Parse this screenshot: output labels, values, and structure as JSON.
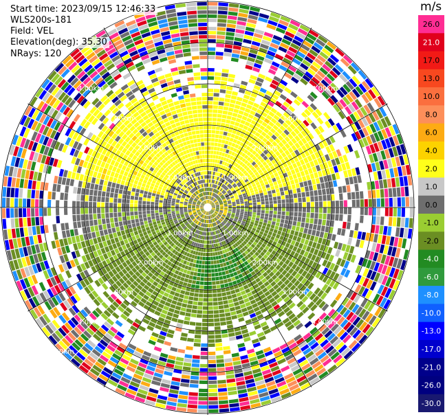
{
  "header": {
    "start_time": "Start time: 2023/09/15 12:46:33",
    "instrument": "WLS200s-181",
    "field": "Field: VEL",
    "elevation": "Elevation(deg): 35.30",
    "nrays": "NRays: 120"
  },
  "colorbar": {
    "unit": "m/s",
    "levels": [
      {
        "label": "26.0",
        "color": "#ff2d93"
      },
      {
        "label": "21.0",
        "color": "#e0001c"
      },
      {
        "label": "17.0",
        "color": "#f21a16"
      },
      {
        "label": "13.0",
        "color": "#f8481f"
      },
      {
        "label": "10.0",
        "color": "#fb6f3e"
      },
      {
        "label": "8.0",
        "color": "#fd8f5a"
      },
      {
        "label": "6.0",
        "color": "#fdab13"
      },
      {
        "label": "4.0",
        "color": "#fdd200"
      },
      {
        "label": "2.0",
        "color": "#ffff1a"
      },
      {
        "label": "1.0",
        "color": "#c8c8c8"
      },
      {
        "label": "0.0",
        "color": "#6e6e6e"
      },
      {
        "label": "-1.0",
        "color": "#9acd32"
      },
      {
        "label": "-2.0",
        "color": "#6b8e23"
      },
      {
        "label": "-4.0",
        "color": "#228b22"
      },
      {
        "label": "-6.0",
        "color": "#2f9a3c"
      },
      {
        "label": "-8.0",
        "color": "#1e90ff"
      },
      {
        "label": "-10.0",
        "color": "#1060ff"
      },
      {
        "label": "-13.0",
        "color": "#0000ff"
      },
      {
        "label": "-17.0",
        "color": "#0000cd"
      },
      {
        "label": "-21.0",
        "color": "#00008b"
      },
      {
        "label": "-26.0",
        "color": "#000080"
      },
      {
        "label": "-30.0",
        "color": "#191970"
      }
    ]
  },
  "range_labels": [
    "1.00km",
    "2.00km",
    "3.00km",
    "4.00km",
    "5.00km"
  ],
  "palette_noise": [
    "#ff2d93",
    "#e0001c",
    "#fdab13",
    "#ffff1a",
    "#6e6e6e",
    "#9acd32",
    "#228b22",
    "#1e90ff",
    "#0000ff",
    "#00008b",
    "#6b8e23",
    "#c8c8c8",
    "#ffffff",
    "#fd8f5a"
  ]
}
